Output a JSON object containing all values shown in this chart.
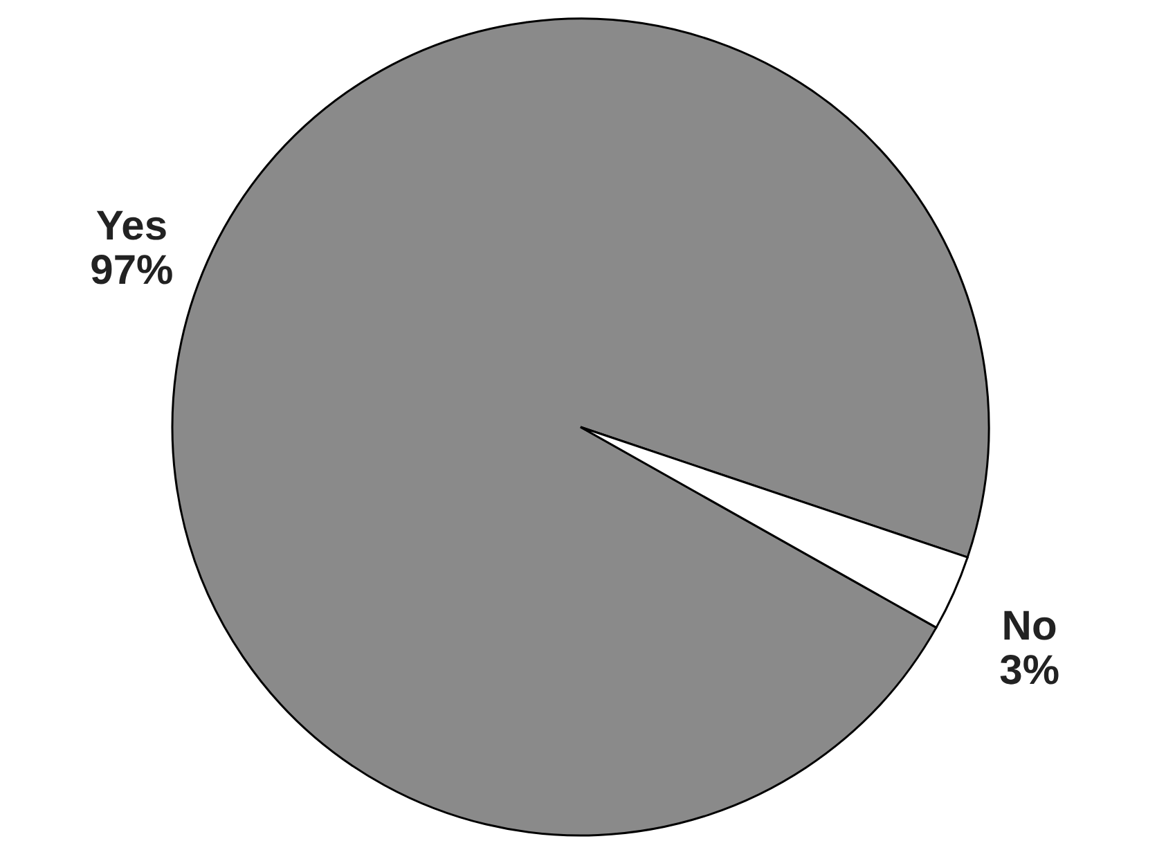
{
  "chart_data": {
    "type": "pie",
    "categories": [
      "Yes",
      "No"
    ],
    "values": [
      97,
      3
    ],
    "colors": [
      "#8a8a8a",
      "#ffffff"
    ],
    "value_labels": [
      "97%",
      "3%"
    ]
  }
}
